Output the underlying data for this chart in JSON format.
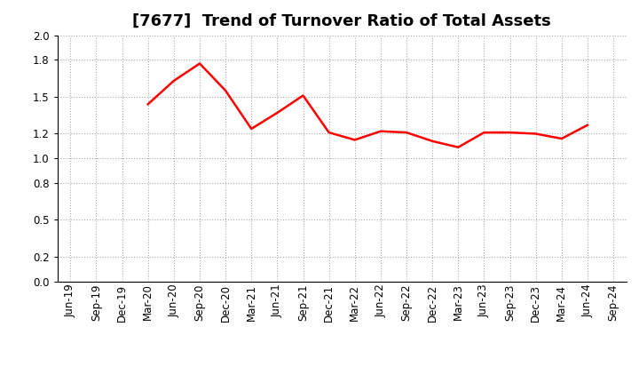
{
  "title": "[7677]  Trend of Turnover Ratio of Total Assets",
  "x_labels": [
    "Jun-19",
    "Sep-19",
    "Dec-19",
    "Mar-20",
    "Jun-20",
    "Sep-20",
    "Dec-20",
    "Mar-21",
    "Jun-21",
    "Sep-21",
    "Dec-21",
    "Mar-22",
    "Jun-22",
    "Sep-22",
    "Dec-22",
    "Mar-23",
    "Jun-23",
    "Sep-23",
    "Dec-23",
    "Mar-24",
    "Jun-24",
    "Sep-24"
  ],
  "data_labels": [
    "Mar-20",
    "Jun-20",
    "Sep-20",
    "Dec-20",
    "Mar-21",
    "Jun-21",
    "Sep-21",
    "Dec-21",
    "Mar-22",
    "Jun-22",
    "Sep-22",
    "Dec-22",
    "Mar-23",
    "Jun-23",
    "Sep-23",
    "Dec-23",
    "Mar-24",
    "Jun-24"
  ],
  "values": [
    1.44,
    1.63,
    1.77,
    1.55,
    1.24,
    1.37,
    1.51,
    1.21,
    1.15,
    1.22,
    1.21,
    1.14,
    1.09,
    1.21,
    1.21,
    1.2,
    1.16,
    1.27
  ],
  "line_color": "#ff0000",
  "line_width": 1.8,
  "ylim": [
    0.0,
    2.0
  ],
  "yticks": [
    0.0,
    0.2,
    0.5,
    0.8,
    1.0,
    1.2,
    1.5,
    1.8,
    2.0
  ],
  "background_color": "#ffffff",
  "grid_color": "#aaaaaa",
  "title_fontsize": 13,
  "tick_fontsize": 8.5
}
